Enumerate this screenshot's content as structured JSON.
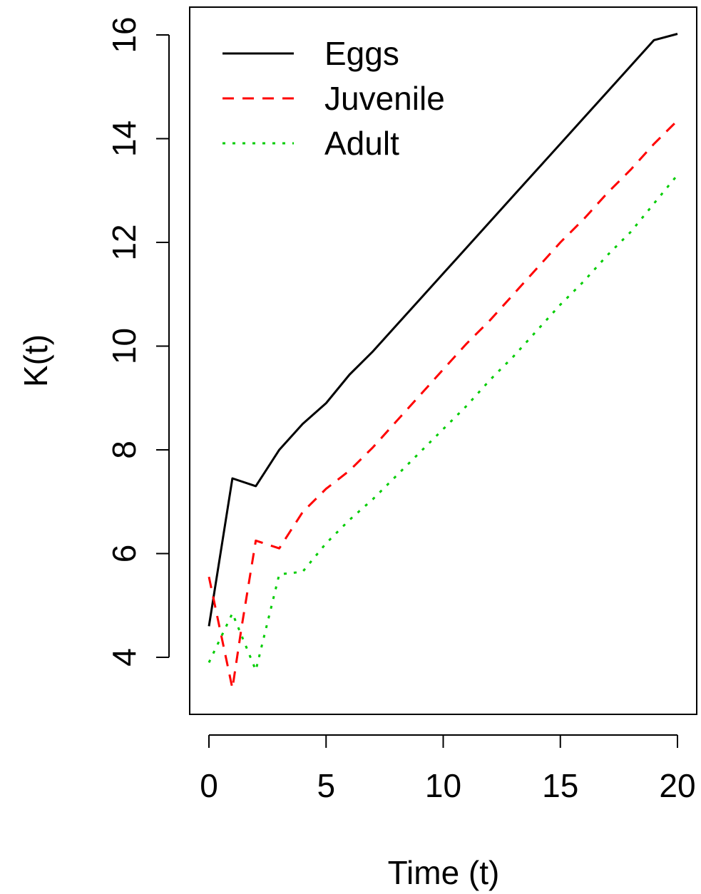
{
  "chart_data": {
    "type": "line",
    "title": "",
    "xlabel": "Time (t)",
    "ylabel": "K(t)",
    "xlim": [
      0,
      20
    ],
    "ylim": [
      3,
      16.5
    ],
    "xticks": [
      0,
      5,
      10,
      15,
      20
    ],
    "yticks": [
      4,
      6,
      8,
      10,
      12,
      14,
      16
    ],
    "legend_position": "top-left",
    "grid": false,
    "series": [
      {
        "name": "Eggs",
        "color": "#000000",
        "dash": "solid",
        "x": [
          0,
          1,
          2,
          3,
          4,
          5,
          6,
          7,
          8,
          9,
          10,
          11,
          12,
          13,
          14,
          15,
          16,
          17,
          18,
          19,
          20
        ],
        "y": [
          4.6,
          7.45,
          7.3,
          8.0,
          8.5,
          8.9,
          9.45,
          9.9,
          10.4,
          10.9,
          11.4,
          11.9,
          12.4,
          12.9,
          13.4,
          13.9,
          14.4,
          14.9,
          15.4,
          15.9,
          16.02
        ]
      },
      {
        "name": "Juvenile",
        "color": "#ff0000",
        "dash": "dashed",
        "x": [
          0,
          1,
          1.4,
          2,
          3,
          4,
          5,
          6,
          7,
          8,
          9,
          10,
          11,
          12,
          13,
          14,
          15,
          16,
          17,
          18,
          19,
          20
        ],
        "y": [
          5.55,
          3.4,
          4.6,
          6.25,
          6.1,
          6.8,
          7.25,
          7.6,
          8.05,
          8.55,
          9.05,
          9.55,
          10.05,
          10.5,
          11.0,
          11.5,
          12.0,
          12.45,
          12.95,
          13.4,
          13.9,
          14.35
        ]
      },
      {
        "name": "Adult",
        "color": "#00cc00",
        "dash": "dotted",
        "x": [
          0,
          1,
          2,
          3,
          4,
          5,
          6,
          7,
          8,
          9,
          10,
          11,
          12,
          13,
          14,
          15,
          16,
          17,
          18,
          19,
          20
        ],
        "y": [
          3.9,
          4.85,
          3.75,
          5.6,
          5.65,
          6.2,
          6.65,
          7.05,
          7.5,
          7.95,
          8.4,
          8.85,
          9.35,
          9.8,
          10.3,
          10.8,
          11.25,
          11.75,
          12.2,
          12.75,
          13.3
        ]
      }
    ]
  }
}
